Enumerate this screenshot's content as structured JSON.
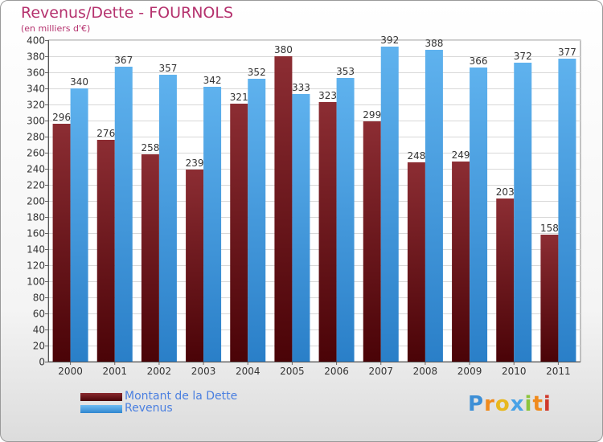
{
  "header": {
    "title": "Revenus/Dette - FOURNOLS",
    "subtitle": "(en milliers d'€)"
  },
  "chart_data": {
    "type": "bar",
    "categories": [
      "2000",
      "2001",
      "2002",
      "2003",
      "2004",
      "2005",
      "2006",
      "2007",
      "2008",
      "2009",
      "2010",
      "2011"
    ],
    "series": [
      {
        "name": "Montant de la Dette",
        "values": [
          296,
          276,
          258,
          239,
          321,
          380,
          323,
          299,
          248,
          249,
          203,
          158
        ],
        "color": "#7a1f24"
      },
      {
        "name": "Revenus",
        "values": [
          340,
          367,
          357,
          342,
          352,
          333,
          353,
          392,
          388,
          366,
          372,
          377
        ],
        "color": "#4aa3e6"
      }
    ],
    "ylim": [
      0,
      400
    ],
    "yticks": [
      0,
      20,
      40,
      60,
      80,
      100,
      120,
      140,
      160,
      180,
      200,
      220,
      240,
      260,
      280,
      300,
      320,
      340,
      360,
      380,
      400
    ],
    "grid": true,
    "legend_position": "bottom-left"
  },
  "legend": {
    "items": [
      {
        "label": "Montant de la Dette",
        "color": "#6b0d12"
      },
      {
        "label": "Revenus",
        "color": "#4aa3e6"
      }
    ]
  },
  "logo": {
    "letters": [
      "P",
      "r",
      "o",
      "x",
      "i",
      "t",
      "i"
    ],
    "colors": [
      "#3d8fd6",
      "#f08a1c",
      "#e8b81e",
      "#4aa3e6",
      "#8cc43c",
      "#f08a1c",
      "#d0392b"
    ]
  }
}
